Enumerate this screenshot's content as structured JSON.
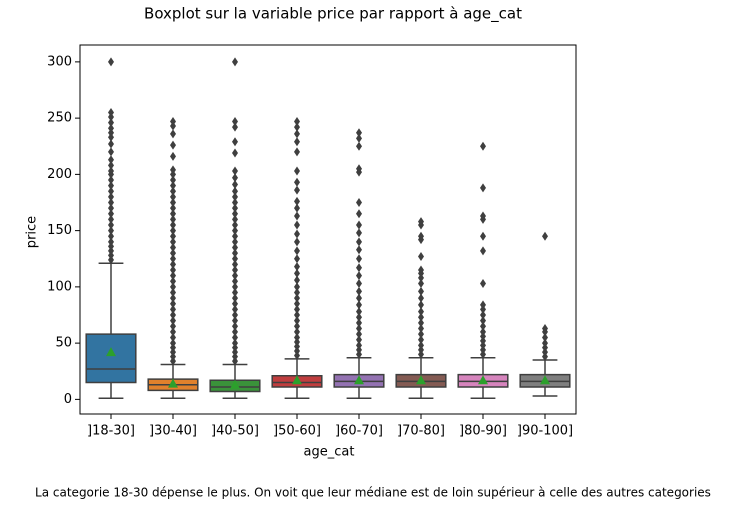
{
  "chart_data": {
    "type": "boxplot",
    "title": "Boxplot sur la variable price par rapport à age_cat",
    "x_label": "age_cat",
    "y_label": "price",
    "categories": [
      "]18-30]",
      "]30-40]",
      "]40-50]",
      "]50-60]",
      "]60-70]",
      "]70-80]",
      "]80-90]",
      "]90-100]"
    ],
    "colors": [
      "#3274a1",
      "#e1812c",
      "#3a923a",
      "#c03d3e",
      "#9372b2",
      "#845b53",
      "#d684bd",
      "#7f7f7f"
    ],
    "mean_color": "#2ca02c",
    "boxes": [
      {
        "min": 1,
        "q1": 15,
        "median": 27,
        "q3": 58,
        "max": 121,
        "mean": 42,
        "outliers": [
          124,
          128,
          132,
          136,
          140,
          145,
          150,
          155,
          160,
          165,
          170,
          175,
          180,
          185,
          190,
          195,
          200,
          203,
          208,
          213,
          220,
          227,
          233,
          237,
          241,
          246,
          251,
          255,
          300
        ]
      },
      {
        "min": 1,
        "q1": 8,
        "median": 13,
        "q3": 18,
        "max": 31,
        "mean": 14,
        "outliers": [
          34,
          38,
          42,
          46,
          50,
          55,
          60,
          65,
          70,
          75,
          80,
          85,
          90,
          95,
          100,
          105,
          110,
          115,
          120,
          125,
          130,
          135,
          140,
          145,
          150,
          155,
          160,
          165,
          170,
          175,
          180,
          185,
          190,
          195,
          200,
          204,
          216,
          226,
          236,
          243,
          247
        ]
      },
      {
        "min": 1,
        "q1": 7,
        "median": 11,
        "q3": 17,
        "max": 31,
        "mean": 13,
        "outliers": [
          34,
          38,
          42,
          46,
          50,
          55,
          60,
          65,
          70,
          75,
          80,
          85,
          90,
          95,
          100,
          105,
          110,
          115,
          120,
          125,
          130,
          135,
          140,
          145,
          150,
          155,
          160,
          165,
          170,
          175,
          180,
          185,
          191,
          197,
          203,
          219,
          229,
          242,
          247,
          300
        ]
      },
      {
        "min": 1,
        "q1": 11,
        "median": 15,
        "q3": 21,
        "max": 36,
        "mean": 17,
        "outliers": [
          39,
          43,
          47,
          51,
          55,
          60,
          65,
          70,
          75,
          80,
          85,
          90,
          95,
          100,
          106,
          112,
          118,
          125,
          132,
          140,
          147,
          155,
          163,
          170,
          176,
          186,
          193,
          203,
          220,
          229,
          236,
          242,
          247
        ]
      },
      {
        "min": 1,
        "q1": 11,
        "median": 16,
        "q3": 22,
        "max": 37,
        "mean": 17,
        "outliers": [
          40,
          44,
          48,
          53,
          58,
          63,
          68,
          73,
          78,
          84,
          90,
          96,
          103,
          110,
          117,
          125,
          133,
          140,
          148,
          155,
          165,
          175,
          202,
          205,
          225,
          232,
          237
        ]
      },
      {
        "min": 1,
        "q1": 11,
        "median": 16,
        "q3": 22,
        "max": 37,
        "mean": 17,
        "outliers": [
          40,
          44,
          48,
          53,
          58,
          63,
          68,
          73,
          78,
          84,
          90,
          96,
          103,
          108,
          112,
          115,
          127,
          142,
          145,
          155,
          158
        ]
      },
      {
        "min": 1,
        "q1": 11,
        "median": 16,
        "q3": 22,
        "max": 37,
        "mean": 17,
        "outliers": [
          40,
          44,
          48,
          52,
          56,
          60,
          65,
          70,
          75,
          80,
          84,
          103,
          132,
          145,
          160,
          163,
          188,
          225
        ]
      },
      {
        "min": 3,
        "q1": 11,
        "median": 16,
        "q3": 22,
        "max": 35,
        "mean": 17,
        "outliers": [
          38,
          42,
          46,
          50,
          55,
          60,
          63,
          145
        ]
      }
    ],
    "ylim": [
      -13,
      315
    ],
    "yticks": [
      0,
      50,
      100,
      150,
      200,
      250,
      300
    ]
  },
  "caption": "La categorie 18-30 dépense le plus. On voit que leur médiane est de loin supérieur à celle des autres categories"
}
